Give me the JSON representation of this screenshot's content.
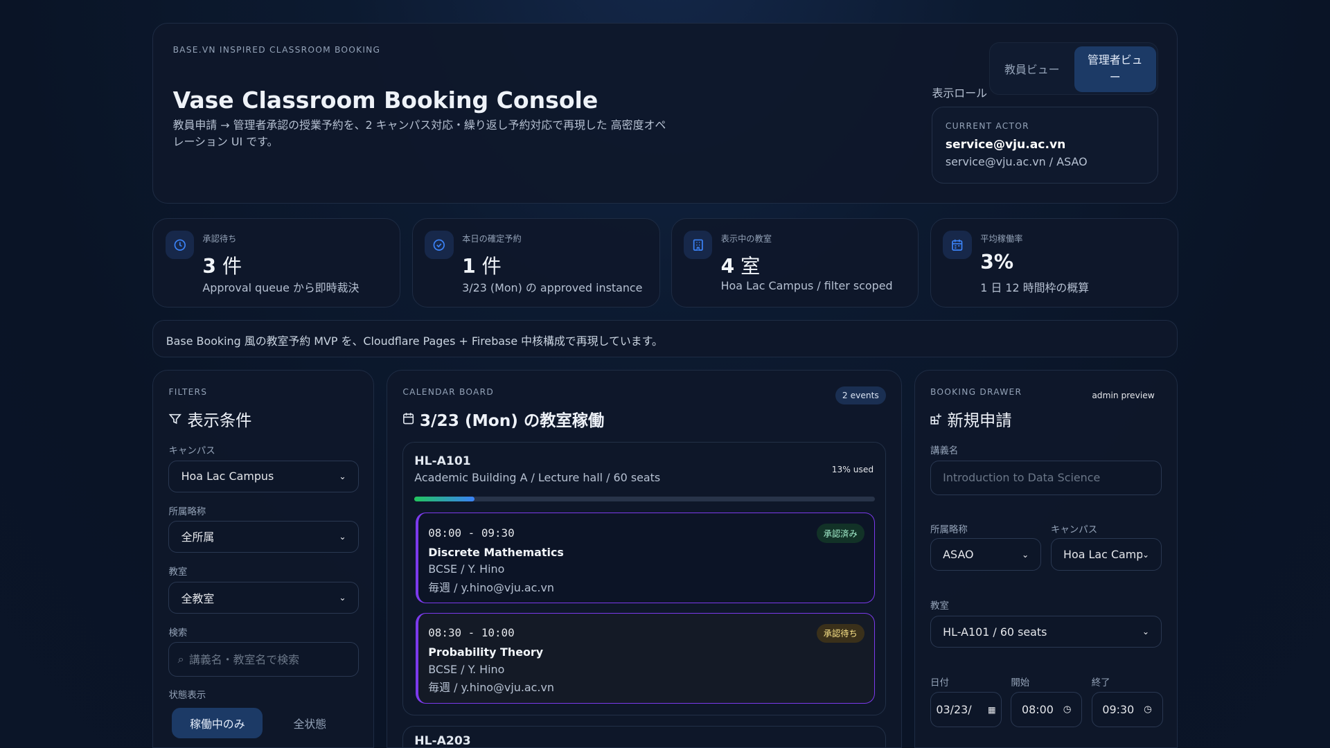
{
  "hero": {
    "eyebrow": "BASE.VN INSPIRED CLASSROOM BOOKING",
    "title": "Vase Classroom Booking Console",
    "description": "教員申請 → 管理者承認の授業予約を、2 キャンパス対応・繰り返し予約対応で再現した 高密度オペレーション UI です。",
    "role_label": "表示ロール",
    "roles": [
      "教員ビュー",
      "管理者ビュー"
    ],
    "active_role": "管理者ビュー",
    "actor": {
      "label": "CURRENT ACTOR",
      "name": "service@vju.ac.vn",
      "detail": "service@vju.ac.vn / ASAO"
    }
  },
  "stats": [
    {
      "icon": "clock-icon",
      "label": "承認待ち",
      "value": "3",
      "unit": " 件",
      "sub": "Approval queue から即時裁決"
    },
    {
      "icon": "check-circle-icon",
      "label": "本日の確定予約",
      "value": "1",
      "unit": " 件",
      "sub": "3/23 (Mon) の approved instance"
    },
    {
      "icon": "building-icon",
      "label": "表示中の教室",
      "value": "4",
      "unit": " 室",
      "sub": "Hoa Lac Campus / filter scoped"
    },
    {
      "icon": "calendar-icon",
      "label": "平均稼働率",
      "value": "3%",
      "unit": "",
      "sub": "1 日 12 時間枠の概算"
    }
  ],
  "notice": "Base Booking 風の教室予約 MVP を、Cloudflare Pages + Firebase 中核構成で再現しています。",
  "filters": {
    "eyebrow": "FILTERS",
    "title": "表示条件",
    "campus_label": "キャンパス",
    "campus": "Hoa Lac Campus",
    "dept_label": "所属略称",
    "dept": "全所属",
    "room_label": "教室",
    "room": "全教室",
    "search_label": "検索",
    "search_placeholder": "講義名・教室名で検索",
    "status_label": "状態表示",
    "status_options": [
      "稼働中のみ",
      "全状態"
    ],
    "status_active": "稼働中のみ"
  },
  "calendar": {
    "eyebrow": "CALENDAR BOARD",
    "title": "3/23 (Mon) の教室稼働",
    "count": "2 events",
    "rooms": [
      {
        "code": "HL-A101",
        "detail": "Academic Building A / Lecture hall / 60 seats",
        "usage": "13% used",
        "usage_pct": 13,
        "events": [
          {
            "time": "08:00 - 09:30",
            "course": "Discrete Mathematics",
            "owner": "BCSE / Y. Hino",
            "recurrence": "毎週 / y.hino@vju.ac.vn",
            "status": "承認済み"
          },
          {
            "time": "08:30 - 10:00",
            "course": "Probability Theory",
            "owner": "BCSE / Y. Hino",
            "recurrence": "毎週 / y.hino@vju.ac.vn",
            "status": "承認待ち"
          }
        ]
      },
      {
        "code": "HL-A203"
      }
    ]
  },
  "drawer": {
    "eyebrow": "BOOKING DRAWER",
    "mode": "admin preview",
    "title": "新規申請",
    "course_label": "講義名",
    "course_placeholder": "Introduction to Data Science",
    "dept_label": "所属略称",
    "dept": "ASAO",
    "campus_label": "キャンパス",
    "campus": "Hoa Lac Campus",
    "room_label": "教室",
    "room": "HL-A101 / 60 seats",
    "date_label": "日付",
    "date": "03/23/",
    "start_label": "開始",
    "start": "08:00",
    "end_label": "終了",
    "end": "09:30"
  },
  "colors": {
    "accent": "#3b82f6",
    "event_border": "#7c3aed",
    "approved": "#86efac",
    "pending": "#fcd34d"
  }
}
